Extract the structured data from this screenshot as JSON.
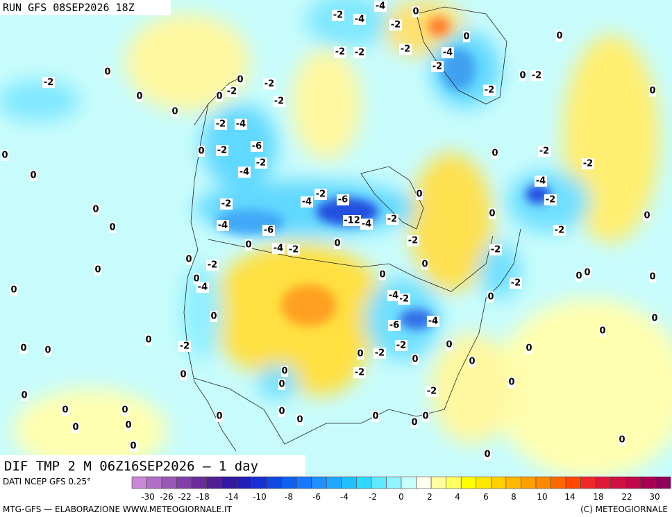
{
  "header": {
    "title": "RUN GFS 08SEP2026 18Z"
  },
  "map_label": "DIF TMP 2 M 06Z16SEP2026 — 1 day",
  "footer": {
    "source": "DATI NCEP GFS 0.25°",
    "credit": "MTG-GFS — ELABORAZIONE WWW.METEOGIORNALE.IT",
    "copyright": "(C) METEOGIORNALE"
  },
  "colorbar": {
    "labels": [
      -30,
      -26,
      -22,
      -18,
      -14,
      -10,
      -8,
      -6,
      -4,
      -2,
      0,
      2,
      4,
      6,
      8,
      10,
      14,
      18,
      22,
      30
    ]
  },
  "contour_labels": [
    -2,
    -4,
    -4,
    0,
    -2,
    0,
    0,
    -2,
    -2,
    -2,
    -4,
    -2,
    0,
    -2,
    -2,
    0,
    -2,
    0,
    0,
    0,
    0,
    0,
    -2,
    -2,
    -2,
    -2,
    -4,
    -6,
    -2,
    -2,
    -4,
    0,
    0,
    0,
    0,
    -2,
    -2,
    -4,
    -2,
    0,
    -4,
    -2,
    -6,
    -2,
    0,
    0,
    0,
    -12,
    -4,
    -2,
    -4,
    -6,
    -2,
    0,
    0,
    -4,
    -2,
    0,
    -2,
    -2,
    0,
    -2,
    0,
    0,
    0,
    0,
    0,
    -4,
    0,
    0,
    0,
    -2,
    0,
    -2,
    -4,
    -6,
    -4,
    0,
    0,
    0,
    0,
    -2,
    0,
    0,
    -2,
    0,
    0,
    -2,
    0,
    0,
    0,
    0,
    0,
    0,
    -2,
    0,
    -2,
    0,
    0,
    0,
    0,
    0,
    0,
    0,
    0,
    0,
    0,
    0,
    0,
    0,
    0
  ]
}
